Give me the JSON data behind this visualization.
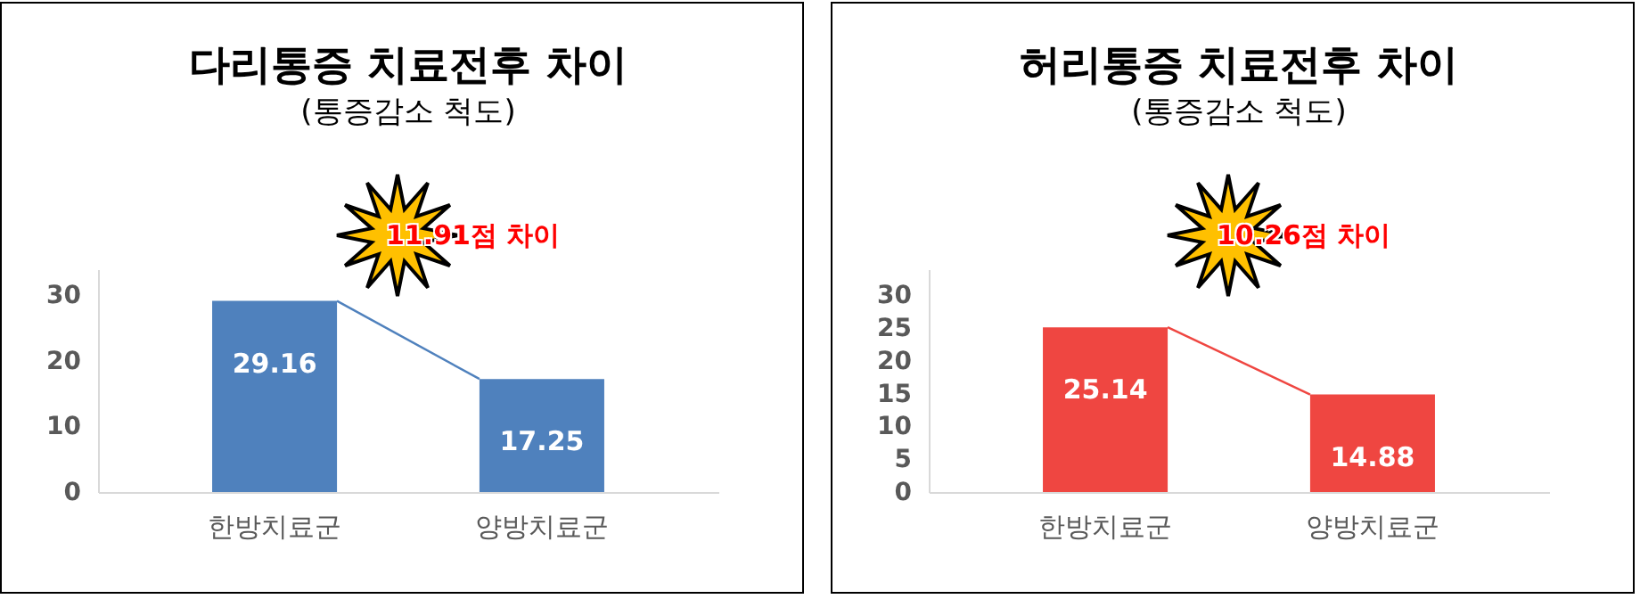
{
  "chart_data": [
    {
      "type": "bar",
      "title": "다리통증 치료전후 차이",
      "subtitle": "(통증감소 척도)",
      "categories": [
        "한방치료군",
        "양방치료군"
      ],
      "values": [
        29.16,
        17.25
      ],
      "color": "#4f81bd",
      "ylim": [
        0,
        34
      ],
      "yticks": [
        0,
        10,
        20,
        30
      ],
      "data_labels": true,
      "annotations": [
        "11.91점 차이"
      ]
    },
    {
      "type": "bar",
      "title": "허리통증 치료전후 차이",
      "subtitle": "(통증감소 척도)",
      "categories": [
        "한방치료군",
        "양방치료군"
      ],
      "values": [
        25.14,
        14.88
      ],
      "color": "#ef4641",
      "ylim": [
        0,
        34
      ],
      "yticks": [
        0,
        5,
        10,
        15,
        20,
        25,
        30
      ],
      "data_labels": true,
      "annotations": [
        "10.26점 차이"
      ]
    }
  ]
}
